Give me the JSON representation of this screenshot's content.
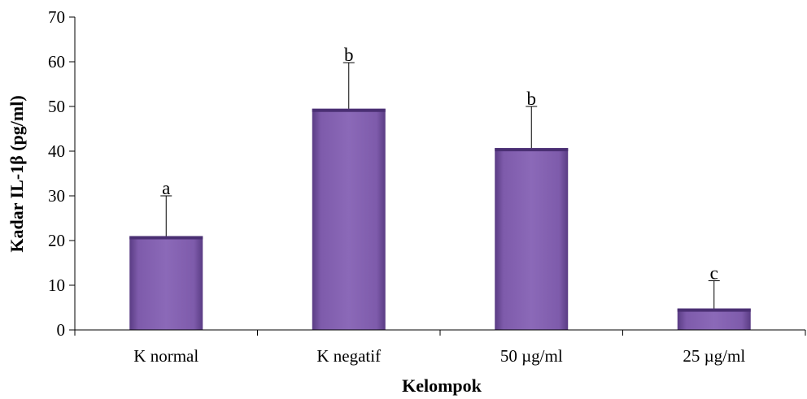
{
  "chart_data": {
    "type": "bar",
    "title": "",
    "xlabel": "Kelompok",
    "ylabel": "Kadar IL-1β (pg/ml)",
    "ylim": [
      0,
      70
    ],
    "yticks": [
      0,
      10,
      20,
      30,
      40,
      50,
      60,
      70
    ],
    "grid": false,
    "legend": "none",
    "categories": [
      "K normal",
      "K negatif",
      "50 µg/ml",
      "25 µg/ml"
    ],
    "values": [
      21,
      49.5,
      40.7,
      4.8
    ],
    "error_plus": [
      9,
      10.3,
      9.3,
      6.2
    ],
    "significance_labels": [
      "a",
      "b",
      "b",
      "c"
    ],
    "colors": {
      "bar_fill": "#7e5bab",
      "bar_light": "#9a7cc4",
      "bar_dark": "#5a3c84",
      "bar_top": "#4a2f73",
      "axis": "#000000"
    }
  }
}
